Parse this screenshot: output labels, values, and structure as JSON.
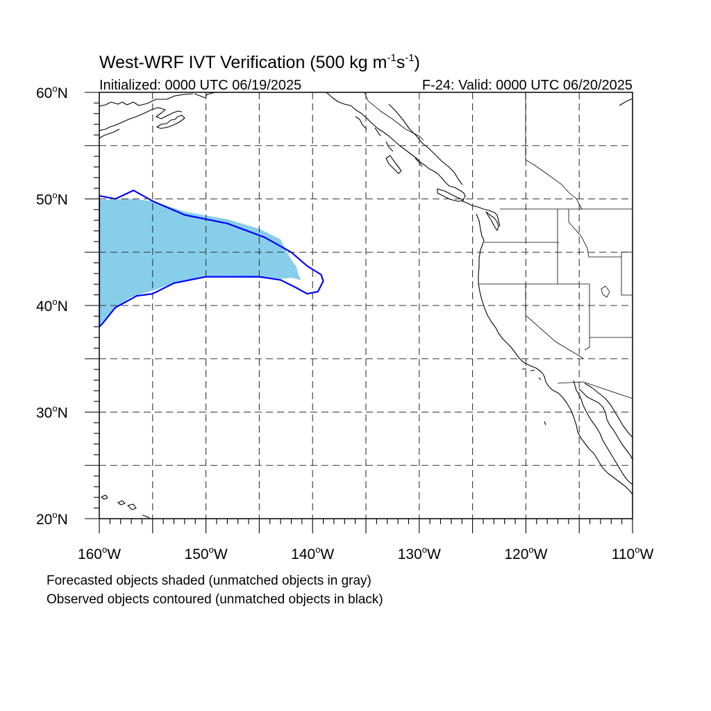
{
  "title": {
    "main": "West-WRF IVT Verification (500 kg m",
    "sup1": "-1",
    "mid": "s",
    "sup2": "-1",
    "end": ")"
  },
  "subtitle_left": "Initialized: 0000 UTC 06/19/2025",
  "subtitle_right": "F-24: Valid: 0000 UTC 06/20/2025",
  "map": {
    "extent": {
      "lon": [
        -160,
        -110
      ],
      "lat": [
        20,
        60
      ]
    },
    "grid_spacing_deg": 5,
    "grid_style": "dashed",
    "lat_labels": [
      {
        "deg": "60",
        "hemi": "N",
        "value": 60
      },
      {
        "deg": "50",
        "hemi": "N",
        "value": 50
      },
      {
        "deg": "40",
        "hemi": "N",
        "value": 40
      },
      {
        "deg": "30",
        "hemi": "N",
        "value": 30
      },
      {
        "deg": "20",
        "hemi": "N",
        "value": 20
      }
    ],
    "lon_labels": [
      {
        "deg": "160",
        "hemi": "W",
        "value": -160
      },
      {
        "deg": "150",
        "hemi": "W",
        "value": -150
      },
      {
        "deg": "140",
        "hemi": "W",
        "value": -140
      },
      {
        "deg": "130",
        "hemi": "W",
        "value": -130
      },
      {
        "deg": "120",
        "hemi": "W",
        "value": -120
      },
      {
        "deg": "110",
        "hemi": "W",
        "value": -110
      }
    ],
    "colors": {
      "forecast_fill": "#87ceeb",
      "observed_contour": "#0000ff",
      "coastline": "#000000",
      "grid": "#333333"
    },
    "forecast_object": {
      "lonlat": [
        [
          -160,
          49.9
        ],
        [
          -157,
          50.0
        ],
        [
          -155,
          49.8
        ],
        [
          -152,
          48.8
        ],
        [
          -148,
          48.1
        ],
        [
          -145,
          47.2
        ],
        [
          -143,
          46.2
        ],
        [
          -142.5,
          45.2
        ],
        [
          -142,
          44.3
        ],
        [
          -141.5,
          43.6
        ],
        [
          -141.4,
          43.1
        ],
        [
          -141.1,
          42.4
        ],
        [
          -142,
          42.6
        ],
        [
          -143,
          42.5
        ],
        [
          -145,
          42.6
        ],
        [
          -150,
          42.7
        ],
        [
          -153,
          42.1
        ],
        [
          -155,
          41.4
        ],
        [
          -157,
          40.8
        ],
        [
          -158.5,
          39.8
        ],
        [
          -160,
          38.1
        ]
      ]
    },
    "observed_object": {
      "lonlat": [
        [
          -160,
          50.3
        ],
        [
          -158.5,
          50.0
        ],
        [
          -156.8,
          50.8
        ],
        [
          -155,
          49.8
        ],
        [
          -152,
          48.5
        ],
        [
          -148,
          47.7
        ],
        [
          -144.5,
          46.4
        ],
        [
          -142,
          45.0
        ],
        [
          -140.5,
          43.7
        ],
        [
          -139.2,
          42.9
        ],
        [
          -139,
          42.3
        ],
        [
          -139.5,
          41.3
        ],
        [
          -140.5,
          41.1
        ],
        [
          -141.6,
          41.7
        ],
        [
          -143,
          42.4
        ],
        [
          -145,
          42.7
        ],
        [
          -150,
          42.7
        ],
        [
          -153,
          42.1
        ],
        [
          -155,
          41.1
        ],
        [
          -156.5,
          40.9
        ],
        [
          -158.5,
          39.8
        ],
        [
          -159.7,
          38.3
        ],
        [
          -160,
          38.0
        ]
      ]
    }
  },
  "caption_1": "Forecasted objects shaded (unmatched objects in gray)",
  "caption_2": "Observed objects contoured (unmatched objects in black)"
}
